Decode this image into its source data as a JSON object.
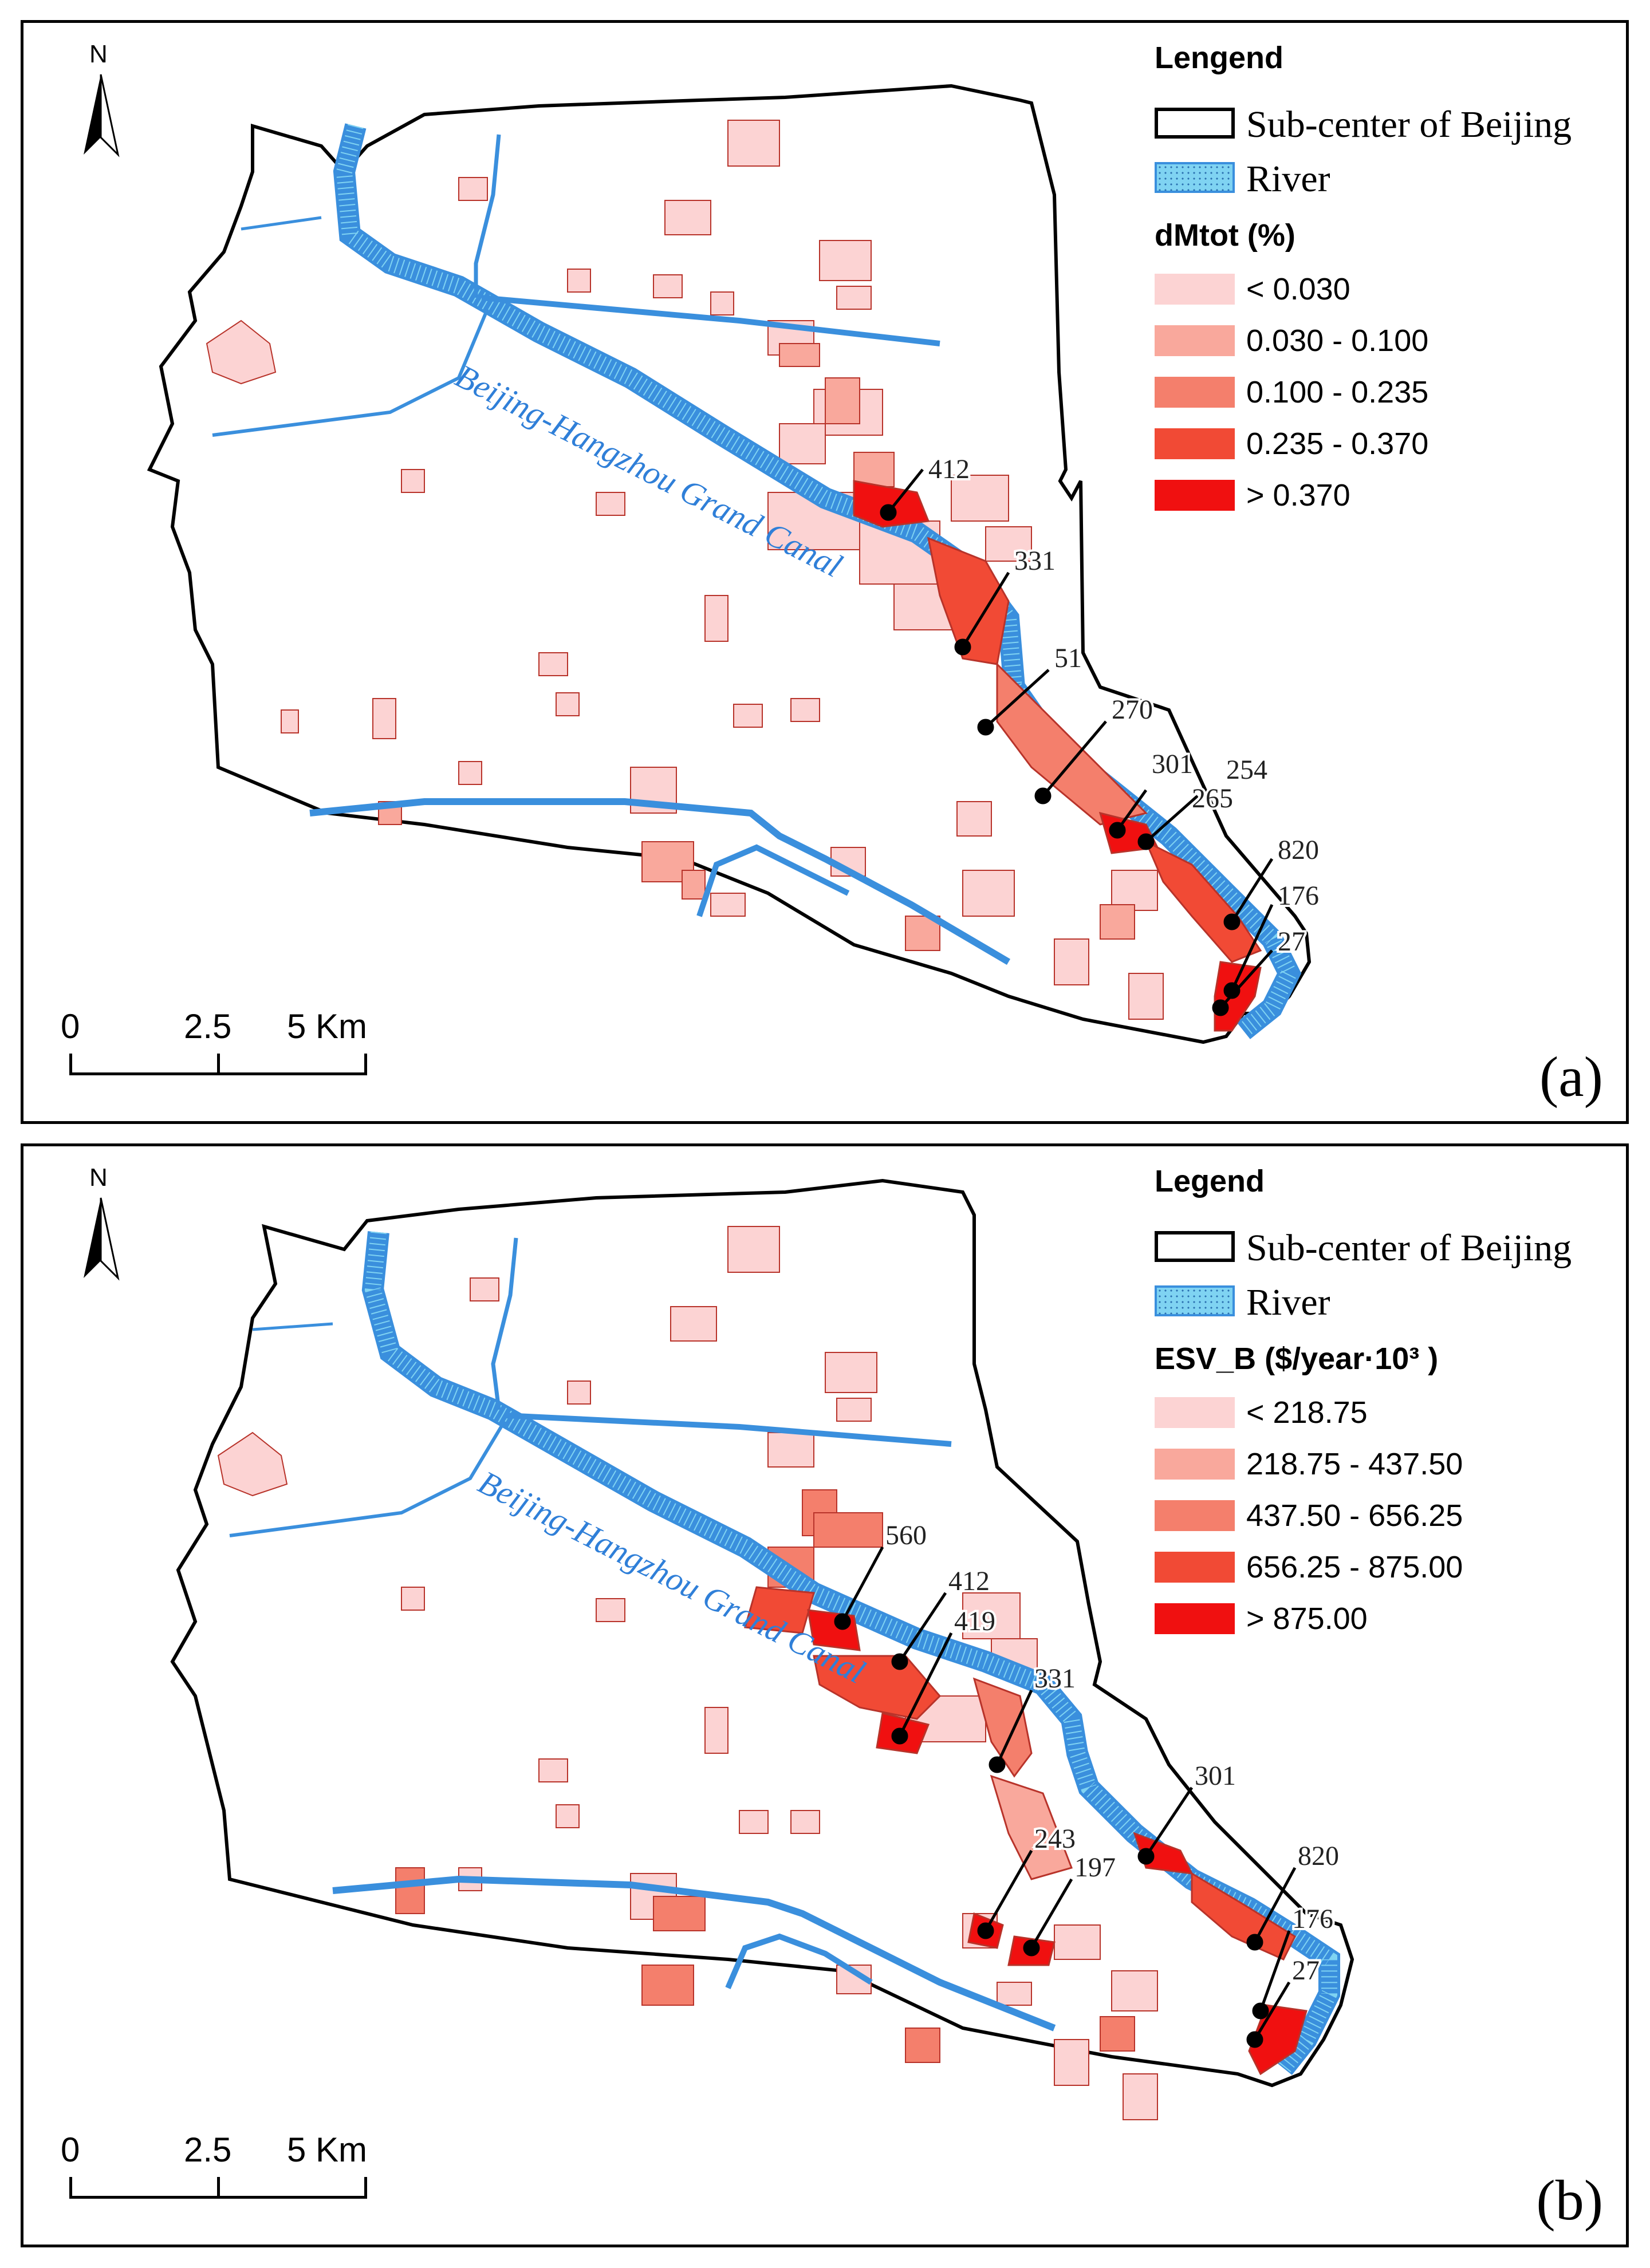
{
  "panels": [
    {
      "id": "a",
      "legend_title": "Lengend",
      "boundary_label": "Sub-center of Beijing",
      "river_label": "River",
      "field_title": "dMtot (%)",
      "classes": [
        {
          "label": "< 0.030",
          "color": "#fcd3d3"
        },
        {
          "label": "0.030 - 0.100",
          "color": "#f9a89c"
        },
        {
          "label": "0.100 - 0.235",
          "color": "#f47f6c"
        },
        {
          "label": "0.235 - 0.370",
          "color": "#f14a35"
        },
        {
          "label": "> 0.370",
          "color": "#f01010"
        }
      ],
      "canal_label": "Beijing-Hangzhou Grand Canal",
      "callouts": [
        "412",
        "331",
        "51",
        "270",
        "301",
        "254",
        "265",
        "820",
        "176",
        "27"
      ],
      "scale_labels": [
        "0",
        "2.5",
        "5 Km"
      ],
      "north_label": "N",
      "panel_letter": "(a)"
    },
    {
      "id": "b",
      "legend_title": "Legend",
      "boundary_label": "Sub-center of Beijing",
      "river_label": "River",
      "field_title": "ESV_B ($/year·10³ )",
      "classes": [
        {
          "label": "< 218.75",
          "color": "#fcd3d3"
        },
        {
          "label": "218.75 - 437.50",
          "color": "#f9a89c"
        },
        {
          "label": "437.50 - 656.25",
          "color": "#f47f6c"
        },
        {
          "label": "656.25 - 875.00",
          "color": "#f14a35"
        },
        {
          "label": "> 875.00",
          "color": "#f01010"
        }
      ],
      "canal_label": "Beijing-Hangzhou Grand Canal",
      "callouts": [
        "560",
        "412",
        "419",
        "331",
        "301",
        "243",
        "197",
        "820",
        "176",
        "27"
      ],
      "scale_labels": [
        "0",
        "2.5",
        "5 Km"
      ],
      "north_label": "N",
      "panel_letter": "(b)"
    }
  ],
  "colors": {
    "boundary": "#000000",
    "river_fill": "#7fd3f2",
    "river_edge": "#3a8fdd",
    "parcel_outline": "#b8332a",
    "highlight": "#f01010"
  }
}
